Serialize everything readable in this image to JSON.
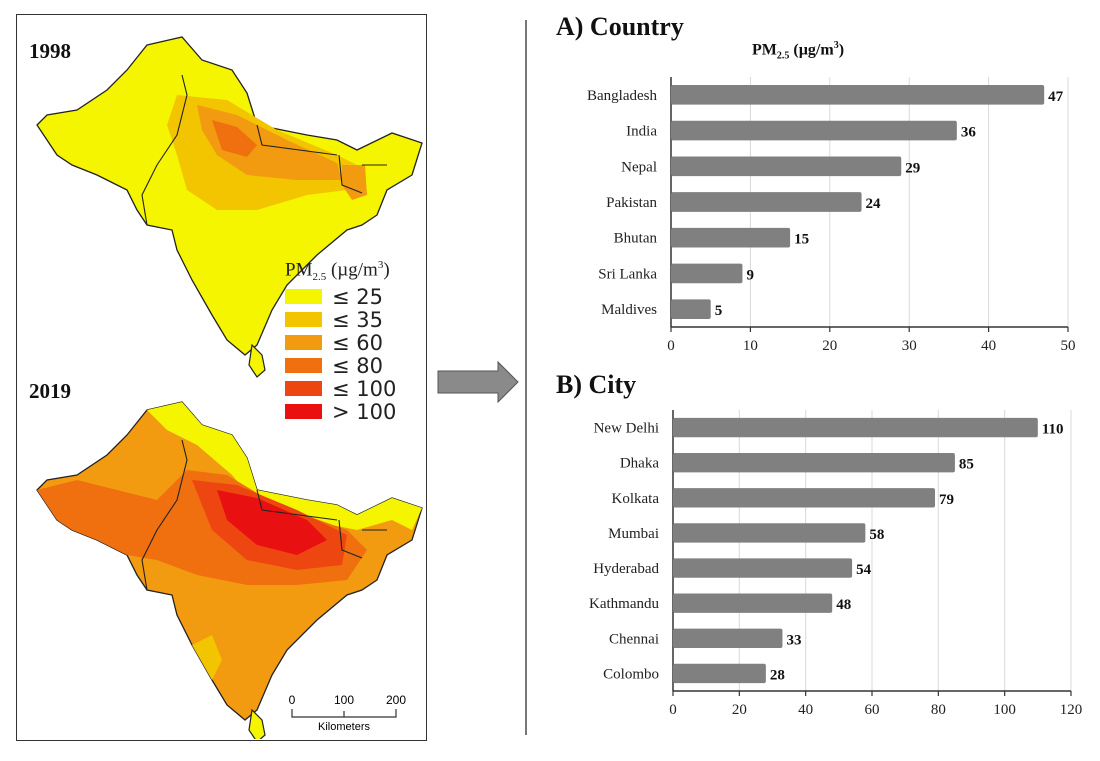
{
  "map_panel": {
    "top_year": "1998",
    "bottom_year": "2019",
    "legend": {
      "title_main": "PM",
      "title_sub": "2.5",
      "title_unit": " (µg/m",
      "title_sup": "3",
      "title_close": ")",
      "items": [
        {
          "label": "≤ 25",
          "color": "#f5f500"
        },
        {
          "label": "≤ 35",
          "color": "#f2c500"
        },
        {
          "label": "≤ 60",
          "color": "#f29a10"
        },
        {
          "label": "≤ 80",
          "color": "#f07010"
        },
        {
          "label": "≤ 100",
          "color": "#ee4610"
        },
        {
          "label": "> 100",
          "color": "#e81010"
        }
      ]
    },
    "scale_bar": {
      "ticks": [
        "0",
        "100",
        "200"
      ],
      "unit": "Kilometers"
    }
  },
  "colors": {
    "bar": "#808080",
    "grid": "#d9d9d9",
    "axis": "#333333",
    "arrow": "#8a8a8a"
  },
  "chart_data": [
    {
      "type": "bar",
      "orientation": "horizontal",
      "section_title": "A) Country",
      "title_main": "PM",
      "title_sub": "2.5",
      "title_unit": " (µg/m",
      "title_sup": "3",
      "title_close": ")",
      "categories": [
        "Bangladesh",
        "India",
        "Nepal",
        "Pakistan",
        "Bhutan",
        "Sri Lanka",
        "Maldives"
      ],
      "values": [
        47,
        36,
        29,
        24,
        15,
        9,
        5
      ],
      "xlim": [
        0,
        50
      ],
      "xticks": [
        0,
        10,
        20,
        30,
        40,
        50
      ],
      "grid": true,
      "data_labels": true
    },
    {
      "type": "bar",
      "orientation": "horizontal",
      "section_title": "B) City",
      "categories": [
        "New Delhi",
        "Dhaka",
        "Kolkata",
        "Mumbai",
        "Hyderabad",
        "Kathmandu",
        "Chennai",
        "Colombo"
      ],
      "values": [
        110,
        85,
        79,
        58,
        54,
        48,
        33,
        28
      ],
      "xlim": [
        0,
        120
      ],
      "xticks": [
        0,
        20,
        40,
        60,
        80,
        100,
        120
      ],
      "grid": true,
      "data_labels": true
    }
  ]
}
